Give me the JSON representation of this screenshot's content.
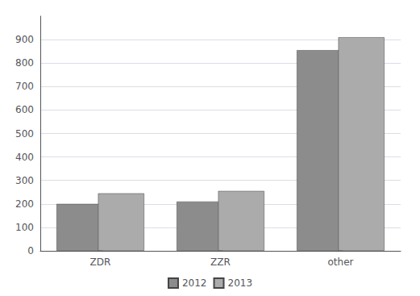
{
  "chart_data": {
    "type": "bar",
    "categories": [
      "ZDR",
      "ZZR",
      "other"
    ],
    "series": [
      {
        "name": "2012",
        "color": "#8c8c8c",
        "values": [
          200,
          210,
          855
        ]
      },
      {
        "name": "2013",
        "color": "#ababab",
        "values": [
          245,
          255,
          910
        ]
      }
    ],
    "ylim": [
      0,
      1000
    ],
    "yticks": [
      0,
      100,
      200,
      300,
      400,
      500,
      600,
      700,
      800,
      900
    ],
    "grid": true,
    "legend": "bottom"
  }
}
